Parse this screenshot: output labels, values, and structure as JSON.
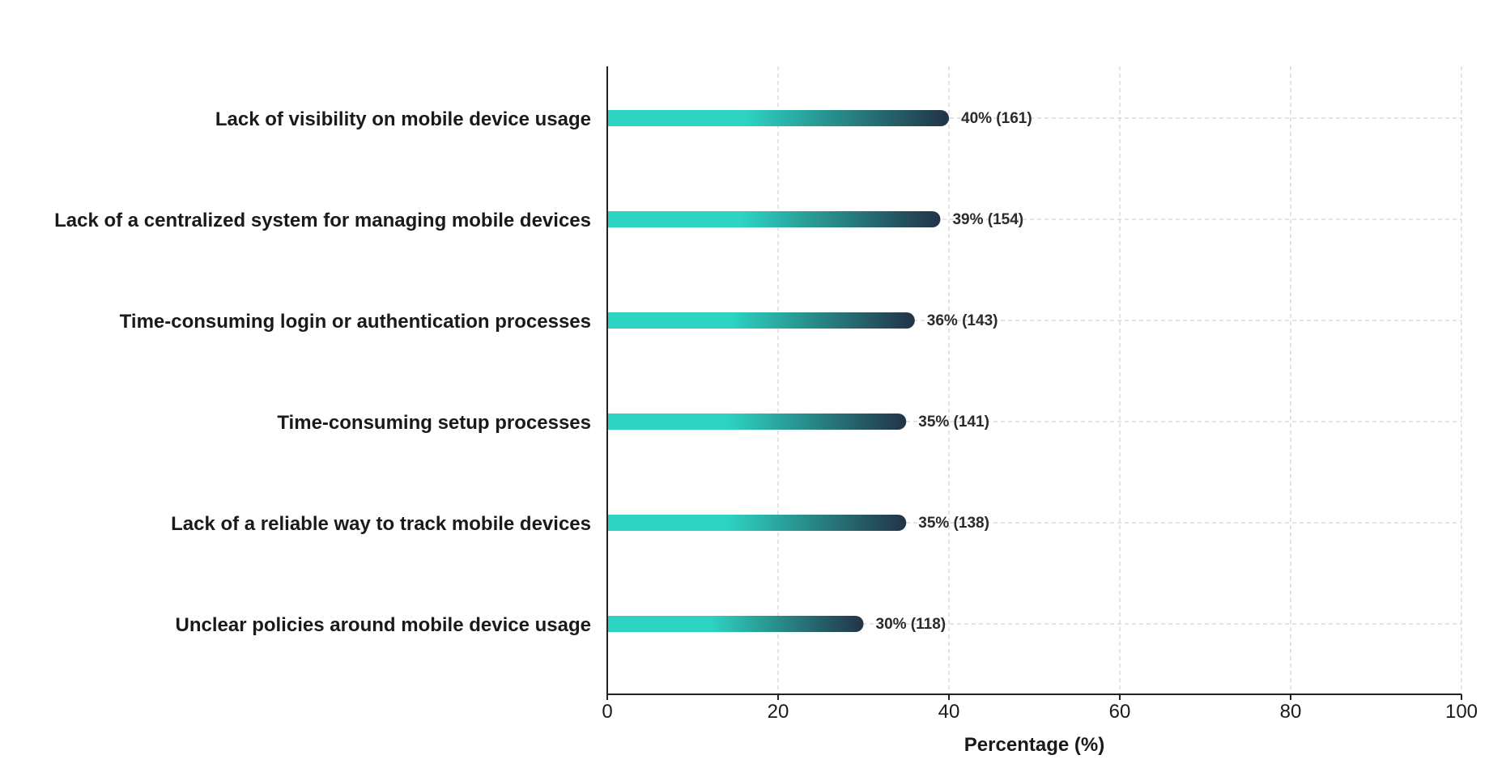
{
  "chart_data": {
    "type": "bar",
    "orientation": "horizontal",
    "categories": [
      "Lack of visibility on mobile device usage",
      "Lack of a centralized system for managing mobile devices",
      "Time-consuming login or authentication processes",
      "Time-consuming setup processes",
      "Lack of a reliable way to track mobile devices",
      "Unclear policies around mobile device usage"
    ],
    "values": [
      40,
      39,
      36,
      35,
      35,
      30
    ],
    "counts": [
      161,
      154,
      143,
      141,
      138,
      118
    ],
    "data_labels": [
      "40% (161)",
      "39% (154)",
      "36% (143)",
      "35% (141)",
      "35% (138)",
      "30% (118)"
    ],
    "xlabel": "Percentage (%)",
    "ylabel": "",
    "xlim": [
      0,
      100
    ],
    "xticks": [
      "0",
      "20",
      "40",
      "60",
      "80",
      "100"
    ],
    "grid": true,
    "colors": {
      "bar_start": "#2dd4c2",
      "bar_end": "#223347",
      "axis": "#222222",
      "grid": "#c8c8c8"
    }
  }
}
